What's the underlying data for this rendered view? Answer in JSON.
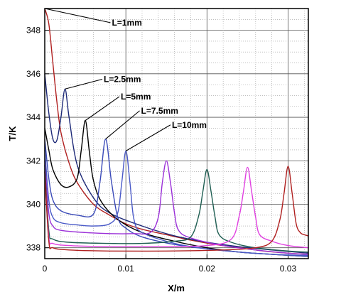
{
  "chart_data": {
    "type": "line",
    "title": "",
    "xlabel": "X/m",
    "ylabel": "T/K",
    "xlim": [
      0,
      0.0325
    ],
    "ylim": [
      337.5,
      349
    ],
    "x_ticks": [
      0,
      0.01,
      0.02,
      0.03
    ],
    "x_tick_labels": [
      "0",
      "0.01",
      "0.02",
      "0.03"
    ],
    "y_ticks": [
      338,
      340,
      342,
      344,
      346,
      348
    ],
    "y_tick_labels": [
      "338",
      "340",
      "342",
      "344",
      "346",
      "348"
    ],
    "grid": true,
    "legend": "none",
    "colors": {
      "red": "#b02020",
      "navy": "#1e2a78",
      "black": "#000000",
      "blue": "#3a4ab8",
      "slate": "#4a5ac8",
      "purple": "#9b30d8",
      "teal": "#1f5e52",
      "magenta": "#e040e0",
      "darkred": "#b02020"
    },
    "annotations": [
      {
        "text": "L=1mm",
        "target": [
          0.0,
          349.0
        ],
        "anchor": [
          0.0081,
          348.35
        ]
      },
      {
        "text": "L=2.5mm",
        "target": [
          0.0025,
          345.3
        ],
        "anchor": [
          0.0071,
          345.75
        ]
      },
      {
        "text": "L=5mm",
        "target": [
          0.005,
          343.85
        ],
        "anchor": [
          0.0092,
          344.95
        ]
      },
      {
        "text": "L=7.5mm",
        "target": [
          0.0075,
          343.0
        ],
        "anchor": [
          0.0117,
          344.3
        ]
      },
      {
        "text": "L=10mm",
        "target": [
          0.01,
          342.45
        ],
        "anchor": [
          0.0155,
          343.65
        ]
      }
    ],
    "series": [
      {
        "color": "red",
        "x": [
          0,
          0.0005,
          0.001,
          0.0015,
          0.002,
          0.003,
          0.004,
          0.006,
          0.008,
          0.01,
          0.012,
          0.015,
          0.018,
          0.021,
          0.024,
          0.027,
          0.03,
          0.0325
        ],
        "y": [
          349,
          348.3,
          346.5,
          344.7,
          343.3,
          341.9,
          341.0,
          340.0,
          339.5,
          339.1,
          338.85,
          338.6,
          338.35,
          338.15,
          338.0,
          337.85,
          337.75,
          337.7
        ]
      },
      {
        "color": "navy",
        "x": [
          0,
          0.0005,
          0.001,
          0.0015,
          0.002,
          0.0025,
          0.003,
          0.004,
          0.006,
          0.008,
          0.012,
          0.016,
          0.02,
          0.024,
          0.028,
          0.0325
        ],
        "y": [
          346.0,
          344.2,
          343.0,
          342.95,
          344.0,
          345.3,
          344.0,
          341.8,
          340.3,
          339.6,
          339.0,
          338.55,
          338.25,
          338.05,
          337.9,
          337.75
        ]
      },
      {
        "color": "black",
        "x": [
          0,
          0.0005,
          0.001,
          0.002,
          0.003,
          0.004,
          0.0045,
          0.005,
          0.0055,
          0.006,
          0.007,
          0.009,
          0.012,
          0.016,
          0.02,
          0.024,
          0.028,
          0.0325
        ],
        "y": [
          343.5,
          342.5,
          341.6,
          340.9,
          340.8,
          341.2,
          342.5,
          343.85,
          342.4,
          341.1,
          340.1,
          339.3,
          338.7,
          338.3,
          338.0,
          337.8,
          337.7,
          337.6
        ]
      },
      {
        "color": "blue",
        "x": [
          0,
          0.0005,
          0.001,
          0.002,
          0.004,
          0.006,
          0.0068,
          0.0075,
          0.0082,
          0.009,
          0.01,
          0.012,
          0.016,
          0.02,
          0.024,
          0.028,
          0.0325
        ],
        "y": [
          343.0,
          341.2,
          340.2,
          339.7,
          339.5,
          339.55,
          341.0,
          343.0,
          341.1,
          339.4,
          338.9,
          338.5,
          338.15,
          337.95,
          337.8,
          337.7,
          337.6
        ]
      },
      {
        "color": "slate",
        "x": [
          0,
          0.0005,
          0.001,
          0.002,
          0.004,
          0.006,
          0.008,
          0.009,
          0.0095,
          0.01,
          0.0105,
          0.011,
          0.012,
          0.016,
          0.02,
          0.024,
          0.028,
          0.0325
        ],
        "y": [
          342.5,
          340.2,
          339.4,
          339.15,
          339.05,
          339.0,
          339.1,
          339.6,
          341.0,
          342.45,
          341.0,
          339.3,
          338.7,
          338.2,
          337.95,
          337.8,
          337.7,
          337.65
        ]
      },
      {
        "color": "purple",
        "x": [
          0,
          0.0005,
          0.001,
          0.002,
          0.005,
          0.008,
          0.011,
          0.013,
          0.014,
          0.0145,
          0.015,
          0.0155,
          0.016,
          0.0165,
          0.018,
          0.022,
          0.026,
          0.03,
          0.0325
        ],
        "y": [
          342.0,
          339.6,
          339.0,
          338.8,
          338.7,
          338.65,
          338.65,
          338.7,
          339.4,
          341.0,
          342.0,
          341.0,
          339.6,
          338.8,
          338.45,
          338.1,
          337.9,
          337.75,
          337.7
        ]
      },
      {
        "color": "teal",
        "x": [
          0,
          0.0005,
          0.001,
          0.003,
          0.008,
          0.012,
          0.016,
          0.018,
          0.019,
          0.0195,
          0.02,
          0.0205,
          0.021,
          0.0215,
          0.023,
          0.026,
          0.03,
          0.0325
        ],
        "y": [
          341.8,
          338.8,
          338.4,
          338.25,
          338.2,
          338.2,
          338.3,
          338.5,
          339.5,
          340.6,
          341.6,
          340.6,
          339.4,
          338.6,
          338.25,
          338.0,
          337.85,
          337.8
        ]
      },
      {
        "color": "magenta",
        "x": [
          0,
          0.0005,
          0.001,
          0.003,
          0.008,
          0.014,
          0.02,
          0.023,
          0.024,
          0.0245,
          0.025,
          0.0255,
          0.026,
          0.0265,
          0.028,
          0.03,
          0.0325
        ],
        "y": [
          341.5,
          338.5,
          338.2,
          338.1,
          338.05,
          338.05,
          338.1,
          338.4,
          339.5,
          340.6,
          341.7,
          340.6,
          339.4,
          338.6,
          338.3,
          338.1,
          338.0
        ]
      },
      {
        "color": "darkred",
        "x": [
          0,
          0.0005,
          0.001,
          0.003,
          0.008,
          0.015,
          0.022,
          0.026,
          0.028,
          0.029,
          0.0295,
          0.03,
          0.0305,
          0.031,
          0.0315,
          0.032,
          0.0325
        ],
        "y": [
          341.5,
          338.3,
          338.0,
          337.9,
          337.85,
          337.85,
          337.9,
          338.0,
          338.3,
          339.3,
          340.5,
          341.75,
          340.5,
          339.1,
          338.7,
          338.6,
          338.55
        ]
      }
    ]
  }
}
